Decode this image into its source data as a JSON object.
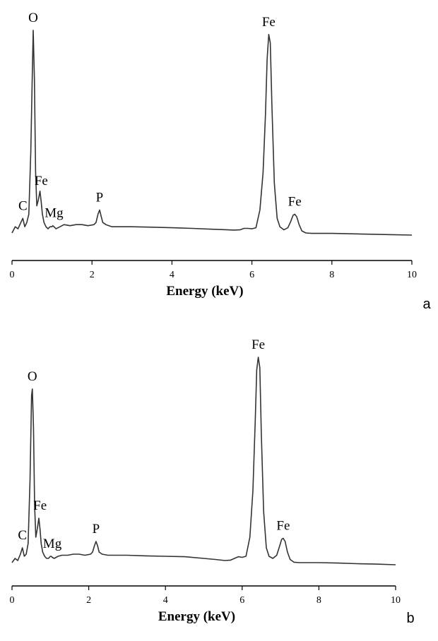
{
  "chart_data": [
    {
      "type": "line",
      "panel_label": "a",
      "xlabel": "Energy (keV)",
      "ylabel": "",
      "xlim": [
        0,
        10
      ],
      "xticks": [
        0,
        2,
        4,
        6,
        8,
        10
      ],
      "yaxis_visible": false,
      "ylim": [
        0,
        1.0
      ],
      "grid": false,
      "line_color": "#333333",
      "series": [
        {
          "x": [
            0.0,
            0.08,
            0.15,
            0.22,
            0.27,
            0.32,
            0.37,
            0.42,
            0.47,
            0.51,
            0.53,
            0.56,
            0.59,
            0.62,
            0.66,
            0.7,
            0.73,
            0.76,
            0.8,
            0.85,
            0.9,
            0.95,
            1.0,
            1.02,
            1.05,
            1.1,
            1.2,
            1.3,
            1.45,
            1.6,
            1.75,
            1.9,
            2.05,
            2.1,
            2.15,
            2.19,
            2.23,
            2.27,
            2.35,
            2.5,
            3.0,
            3.5,
            4.0,
            4.5,
            5.0,
            5.3,
            5.55,
            5.7,
            5.8,
            5.9,
            6.0,
            6.1,
            6.2,
            6.28,
            6.34,
            6.38,
            6.42,
            6.46,
            6.5,
            6.56,
            6.63,
            6.7,
            6.8,
            6.9,
            6.97,
            7.03,
            7.07,
            7.12,
            7.18,
            7.25,
            7.35,
            7.5,
            8.0,
            8.5,
            9.0,
            9.5,
            10.0
          ],
          "y": [
            0.01,
            0.04,
            0.03,
            0.06,
            0.08,
            0.04,
            0.06,
            0.1,
            0.4,
            0.8,
            0.98,
            0.75,
            0.3,
            0.14,
            0.17,
            0.21,
            0.16,
            0.1,
            0.06,
            0.04,
            0.03,
            0.04,
            0.04,
            0.045,
            0.04,
            0.03,
            0.04,
            0.05,
            0.045,
            0.05,
            0.05,
            0.045,
            0.05,
            0.06,
            0.1,
            0.12,
            0.09,
            0.06,
            0.05,
            0.04,
            0.04,
            0.038,
            0.035,
            0.032,
            0.028,
            0.026,
            0.024,
            0.025,
            0.032,
            0.032,
            0.03,
            0.035,
            0.12,
            0.3,
            0.58,
            0.84,
            0.96,
            0.92,
            0.62,
            0.25,
            0.08,
            0.04,
            0.025,
            0.035,
            0.065,
            0.095,
            0.1,
            0.088,
            0.05,
            0.02,
            0.01,
            0.008,
            0.008,
            0.006,
            0.004,
            0.002,
            0.0
          ]
        }
      ],
      "annotations": [
        {
          "text": "O",
          "x": 0.53,
          "y": 0.98
        },
        {
          "text": "Fe",
          "x": 0.73,
          "y": 0.2
        },
        {
          "text": "C",
          "x": 0.27,
          "y": 0.08
        },
        {
          "text": "Mg",
          "x": 1.05,
          "y": 0.045
        },
        {
          "text": "P",
          "x": 2.19,
          "y": 0.12
        },
        {
          "text": "Fe",
          "x": 6.42,
          "y": 0.96
        },
        {
          "text": "Fe",
          "x": 7.07,
          "y": 0.1
        }
      ]
    },
    {
      "type": "line",
      "panel_label": "b",
      "xlabel": "Energy (keV)",
      "ylabel": "",
      "xlim": [
        0,
        10
      ],
      "xticks": [
        0,
        2,
        4,
        6,
        8,
        10
      ],
      "yaxis_visible": false,
      "ylim": [
        0,
        1.0
      ],
      "grid": false,
      "line_color": "#333333",
      "series": [
        {
          "x": [
            0.0,
            0.08,
            0.15,
            0.22,
            0.27,
            0.32,
            0.37,
            0.42,
            0.47,
            0.51,
            0.53,
            0.56,
            0.59,
            0.62,
            0.66,
            0.7,
            0.73,
            0.76,
            0.8,
            0.85,
            0.9,
            0.95,
            1.0,
            1.02,
            1.05,
            1.1,
            1.2,
            1.3,
            1.45,
            1.6,
            1.75,
            1.9,
            2.05,
            2.1,
            2.15,
            2.19,
            2.23,
            2.27,
            2.35,
            2.5,
            3.0,
            3.5,
            4.0,
            4.5,
            5.0,
            5.3,
            5.55,
            5.7,
            5.8,
            5.9,
            6.0,
            6.1,
            6.2,
            6.28,
            6.34,
            6.38,
            6.42,
            6.46,
            6.5,
            6.56,
            6.63,
            6.7,
            6.8,
            6.9,
            6.97,
            7.03,
            7.07,
            7.12,
            7.18,
            7.25,
            7.35,
            7.5,
            8.0,
            8.5,
            9.0,
            9.5,
            10.0
          ],
          "y": [
            0.01,
            0.03,
            0.02,
            0.05,
            0.08,
            0.04,
            0.05,
            0.1,
            0.4,
            0.8,
            0.83,
            0.65,
            0.28,
            0.13,
            0.17,
            0.22,
            0.17,
            0.1,
            0.06,
            0.04,
            0.03,
            0.03,
            0.04,
            0.04,
            0.035,
            0.03,
            0.04,
            0.045,
            0.045,
            0.05,
            0.05,
            0.045,
            0.05,
            0.06,
            0.09,
            0.11,
            0.09,
            0.06,
            0.05,
            0.045,
            0.045,
            0.042,
            0.04,
            0.038,
            0.03,
            0.025,
            0.02,
            0.022,
            0.03,
            0.038,
            0.035,
            0.04,
            0.13,
            0.35,
            0.68,
            0.92,
            0.98,
            0.93,
            0.62,
            0.25,
            0.08,
            0.04,
            0.03,
            0.045,
            0.085,
            0.12,
            0.125,
            0.11,
            0.06,
            0.025,
            0.012,
            0.01,
            0.01,
            0.008,
            0.005,
            0.003,
            0.0
          ]
        }
      ],
      "annotations": [
        {
          "text": "O",
          "x": 0.53,
          "y": 0.83
        },
        {
          "text": "Fe",
          "x": 0.73,
          "y": 0.22
        },
        {
          "text": "C",
          "x": 0.27,
          "y": 0.08
        },
        {
          "text": "Mg",
          "x": 1.05,
          "y": 0.04
        },
        {
          "text": "P",
          "x": 2.19,
          "y": 0.11
        },
        {
          "text": "Fe",
          "x": 6.42,
          "y": 0.98
        },
        {
          "text": "Fe",
          "x": 7.07,
          "y": 0.125
        }
      ]
    }
  ]
}
